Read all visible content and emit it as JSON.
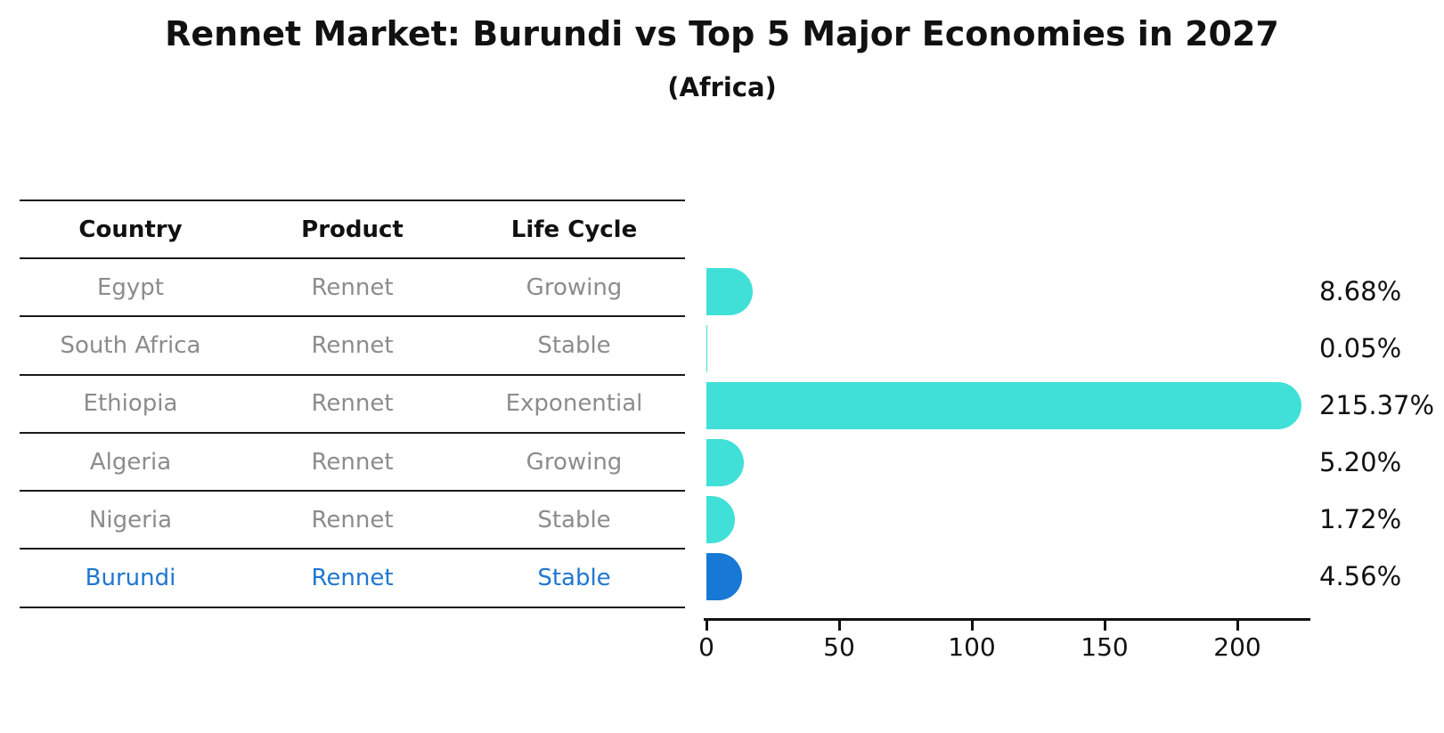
{
  "header": {
    "title": "Rennet Market: Burundi vs Top 5 Major Economies in 2027",
    "subtitle": "(Africa)"
  },
  "table": {
    "headers": [
      "Country",
      "Product",
      "Life Cycle"
    ],
    "rows": [
      {
        "country": "Egypt",
        "product": "Rennet",
        "life_cycle": "Growing",
        "highlight": false
      },
      {
        "country": "South Africa",
        "product": "Rennet",
        "life_cycle": "Stable",
        "highlight": false
      },
      {
        "country": "Ethiopia",
        "product": "Rennet",
        "life_cycle": "Exponential",
        "highlight": false
      },
      {
        "country": "Algeria",
        "product": "Rennet",
        "life_cycle": "Growing",
        "highlight": false
      },
      {
        "country": "Nigeria",
        "product": "Rennet",
        "life_cycle": "Stable",
        "highlight": false
      },
      {
        "country": "Burundi",
        "product": "Rennet",
        "life_cycle": "Stable",
        "highlight": true
      }
    ]
  },
  "chart_data": {
    "type": "bar",
    "orientation": "horizontal",
    "title": "Rennet Market: Burundi vs Top 5 Major Economies in 2027",
    "subtitle": "(Africa)",
    "categories": [
      "Egypt",
      "South Africa",
      "Ethiopia",
      "Algeria",
      "Nigeria",
      "Burundi"
    ],
    "values": [
      8.68,
      0.05,
      215.37,
      5.2,
      1.72,
      4.56
    ],
    "value_labels": [
      "8.68%",
      "0.05%",
      "215.37%",
      "5.20%",
      "1.72%",
      "4.56%"
    ],
    "x_ticks": [
      0,
      50,
      100,
      150,
      200
    ],
    "xlim": [
      0,
      227
    ],
    "grid": false,
    "legend": false,
    "base_color": "#40E0D8",
    "highlight_color": "#1F77D0",
    "bar_colors": [
      "#40E0D8",
      "#40E0D8",
      "#40E0D8",
      "#40E0D8",
      "#40E0D8",
      "#1878D6"
    ],
    "highlight_category": "Burundi"
  }
}
